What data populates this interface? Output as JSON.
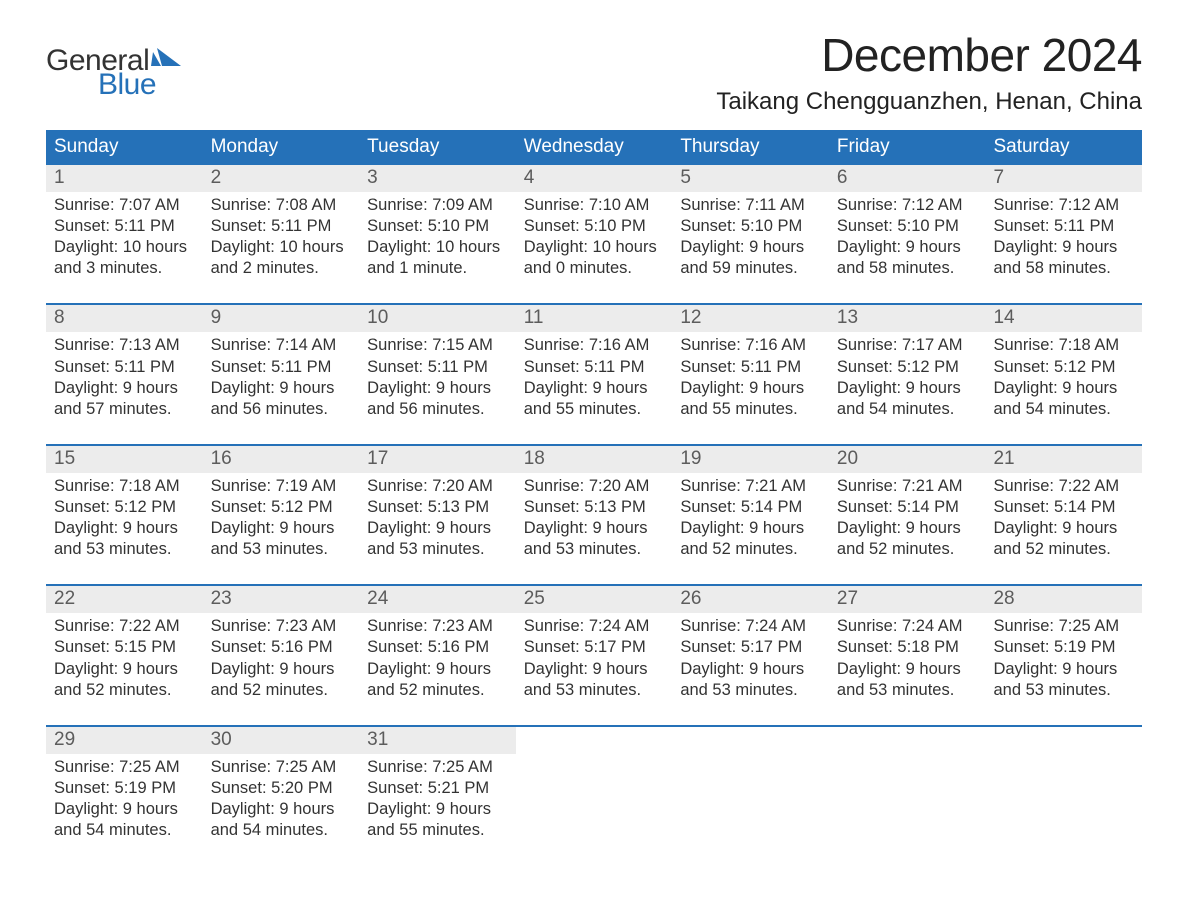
{
  "logo": {
    "word1": "General",
    "word2": "Blue"
  },
  "title": "December 2024",
  "location": "Taikang Chengguanzhen, Henan, China",
  "colors": {
    "header_bg": "#2571b8",
    "header_text": "#ffffff",
    "daynum_bg": "#ececec",
    "daynum_text": "#5c5c5c",
    "border": "#2571b8",
    "text": "#333333",
    "logo_blue": "#2571b8"
  },
  "weekdays": [
    "Sunday",
    "Monday",
    "Tuesday",
    "Wednesday",
    "Thursday",
    "Friday",
    "Saturday"
  ],
  "weeks": [
    [
      {
        "n": "1",
        "sunrise": "7:07 AM",
        "sunset": "5:11 PM",
        "dl1": "10 hours",
        "dl2": "and 3 minutes."
      },
      {
        "n": "2",
        "sunrise": "7:08 AM",
        "sunset": "5:11 PM",
        "dl1": "10 hours",
        "dl2": "and 2 minutes."
      },
      {
        "n": "3",
        "sunrise": "7:09 AM",
        "sunset": "5:10 PM",
        "dl1": "10 hours",
        "dl2": "and 1 minute."
      },
      {
        "n": "4",
        "sunrise": "7:10 AM",
        "sunset": "5:10 PM",
        "dl1": "10 hours",
        "dl2": "and 0 minutes."
      },
      {
        "n": "5",
        "sunrise": "7:11 AM",
        "sunset": "5:10 PM",
        "dl1": "9 hours",
        "dl2": "and 59 minutes."
      },
      {
        "n": "6",
        "sunrise": "7:12 AM",
        "sunset": "5:10 PM",
        "dl1": "9 hours",
        "dl2": "and 58 minutes."
      },
      {
        "n": "7",
        "sunrise": "7:12 AM",
        "sunset": "5:11 PM",
        "dl1": "9 hours",
        "dl2": "and 58 minutes."
      }
    ],
    [
      {
        "n": "8",
        "sunrise": "7:13 AM",
        "sunset": "5:11 PM",
        "dl1": "9 hours",
        "dl2": "and 57 minutes."
      },
      {
        "n": "9",
        "sunrise": "7:14 AM",
        "sunset": "5:11 PM",
        "dl1": "9 hours",
        "dl2": "and 56 minutes."
      },
      {
        "n": "10",
        "sunrise": "7:15 AM",
        "sunset": "5:11 PM",
        "dl1": "9 hours",
        "dl2": "and 56 minutes."
      },
      {
        "n": "11",
        "sunrise": "7:16 AM",
        "sunset": "5:11 PM",
        "dl1": "9 hours",
        "dl2": "and 55 minutes."
      },
      {
        "n": "12",
        "sunrise": "7:16 AM",
        "sunset": "5:11 PM",
        "dl1": "9 hours",
        "dl2": "and 55 minutes."
      },
      {
        "n": "13",
        "sunrise": "7:17 AM",
        "sunset": "5:12 PM",
        "dl1": "9 hours",
        "dl2": "and 54 minutes."
      },
      {
        "n": "14",
        "sunrise": "7:18 AM",
        "sunset": "5:12 PM",
        "dl1": "9 hours",
        "dl2": "and 54 minutes."
      }
    ],
    [
      {
        "n": "15",
        "sunrise": "7:18 AM",
        "sunset": "5:12 PM",
        "dl1": "9 hours",
        "dl2": "and 53 minutes."
      },
      {
        "n": "16",
        "sunrise": "7:19 AM",
        "sunset": "5:12 PM",
        "dl1": "9 hours",
        "dl2": "and 53 minutes."
      },
      {
        "n": "17",
        "sunrise": "7:20 AM",
        "sunset": "5:13 PM",
        "dl1": "9 hours",
        "dl2": "and 53 minutes."
      },
      {
        "n": "18",
        "sunrise": "7:20 AM",
        "sunset": "5:13 PM",
        "dl1": "9 hours",
        "dl2": "and 53 minutes."
      },
      {
        "n": "19",
        "sunrise": "7:21 AM",
        "sunset": "5:14 PM",
        "dl1": "9 hours",
        "dl2": "and 52 minutes."
      },
      {
        "n": "20",
        "sunrise": "7:21 AM",
        "sunset": "5:14 PM",
        "dl1": "9 hours",
        "dl2": "and 52 minutes."
      },
      {
        "n": "21",
        "sunrise": "7:22 AM",
        "sunset": "5:14 PM",
        "dl1": "9 hours",
        "dl2": "and 52 minutes."
      }
    ],
    [
      {
        "n": "22",
        "sunrise": "7:22 AM",
        "sunset": "5:15 PM",
        "dl1": "9 hours",
        "dl2": "and 52 minutes."
      },
      {
        "n": "23",
        "sunrise": "7:23 AM",
        "sunset": "5:16 PM",
        "dl1": "9 hours",
        "dl2": "and 52 minutes."
      },
      {
        "n": "24",
        "sunrise": "7:23 AM",
        "sunset": "5:16 PM",
        "dl1": "9 hours",
        "dl2": "and 52 minutes."
      },
      {
        "n": "25",
        "sunrise": "7:24 AM",
        "sunset": "5:17 PM",
        "dl1": "9 hours",
        "dl2": "and 53 minutes."
      },
      {
        "n": "26",
        "sunrise": "7:24 AM",
        "sunset": "5:17 PM",
        "dl1": "9 hours",
        "dl2": "and 53 minutes."
      },
      {
        "n": "27",
        "sunrise": "7:24 AM",
        "sunset": "5:18 PM",
        "dl1": "9 hours",
        "dl2": "and 53 minutes."
      },
      {
        "n": "28",
        "sunrise": "7:25 AM",
        "sunset": "5:19 PM",
        "dl1": "9 hours",
        "dl2": "and 53 minutes."
      }
    ],
    [
      {
        "n": "29",
        "sunrise": "7:25 AM",
        "sunset": "5:19 PM",
        "dl1": "9 hours",
        "dl2": "and 54 minutes."
      },
      {
        "n": "30",
        "sunrise": "7:25 AM",
        "sunset": "5:20 PM",
        "dl1": "9 hours",
        "dl2": "and 54 minutes."
      },
      {
        "n": "31",
        "sunrise": "7:25 AM",
        "sunset": "5:21 PM",
        "dl1": "9 hours",
        "dl2": "and 55 minutes."
      },
      null,
      null,
      null,
      null
    ]
  ],
  "labels": {
    "sunrise_prefix": "Sunrise: ",
    "sunset_prefix": "Sunset: ",
    "daylight_prefix": "Daylight: "
  }
}
